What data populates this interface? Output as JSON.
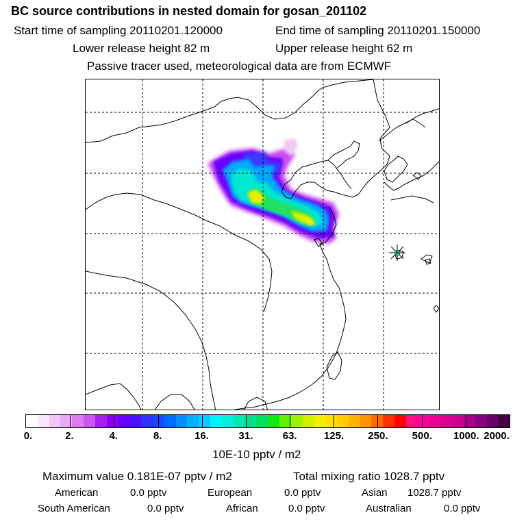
{
  "header": {
    "title": "BC  source contributions in nested domain for gosan_201102",
    "start_time": "Start time of sampling 20110201.120000",
    "end_time": "End time of sampling 20110201.150000",
    "lower_height": "Lower release height   82 m",
    "upper_height": "Upper release height   62 m",
    "tracer_note": "Passive tracer used, meteorological data are from ECMWF"
  },
  "colorbar": {
    "tick_labels": [
      "0.",
      "2.",
      "4.",
      "8.",
      "16.",
      "31.",
      "63.",
      "125.",
      "250.",
      "500.",
      "1000.",
      "2000."
    ],
    "colors": [
      "#ffffff",
      "#fbe6fb",
      "#f2c7f7",
      "#e9a8f5",
      "#dd7cf2",
      "#c858f0",
      "#a81df0",
      "#8a00f3",
      "#6a00ff",
      "#4a10ff",
      "#3030ff",
      "#1a48ff",
      "#006cff",
      "#0090ff",
      "#00b0ff",
      "#00cfff",
      "#00f2ff",
      "#00f0e0",
      "#00e8b4",
      "#00e08c",
      "#00e060",
      "#10ea10",
      "#60f000",
      "#a0f000",
      "#d0f000",
      "#f0f000",
      "#ffe000",
      "#ffcc00",
      "#ffb000",
      "#ff9400",
      "#ff6a00",
      "#ff3000",
      "#ff0000",
      "#ff1080",
      "#ff00a0",
      "#ee0090",
      "#dd0090",
      "#cc0090",
      "#aa0088",
      "#880080",
      "#660066",
      "#440044"
    ],
    "unit": "10E-10 pptv / m2"
  },
  "summary": {
    "maximum": "Maximum value  0.181E-07 pptv / m2",
    "total": "Total mixing ratio     1028.7 pptv",
    "american_label": "American",
    "american_value": "0.0 pptv",
    "european_label": "European",
    "european_value": "0.0 pptv",
    "asian_label": "Asian",
    "asian_value": "1028.7 pptv",
    "south_american_label": "South American",
    "south_american_value": "0.0 pptv",
    "african_label": "African",
    "african_value": "0.0 pptv",
    "australian_label": "Australian",
    "australian_value": "0.0 pptv"
  }
}
